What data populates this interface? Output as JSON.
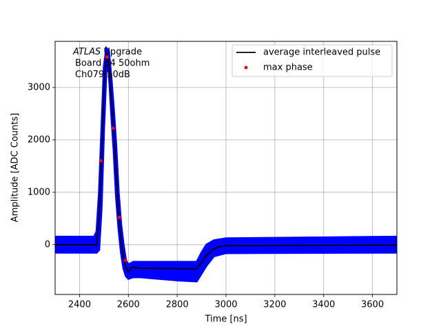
{
  "chart_data": {
    "type": "line",
    "xlabel": "Time [ns]",
    "ylabel": "Amplitude [ADC Counts]",
    "xlim": [
      2300,
      3700
    ],
    "ylim": [
      -950,
      3880
    ],
    "xticks": [
      2400,
      2600,
      2800,
      3000,
      3200,
      3400,
      3600
    ],
    "yticks": [
      0,
      1000,
      2000,
      3000
    ],
    "grid": true,
    "legend": "upper right",
    "annotation_italic": "ATLAS",
    "annotation": [
      "Upgrade",
      "Board 34 50ohm",
      "Ch079 50dB"
    ],
    "band": {
      "color": "#0000ff",
      "x": [
        2300,
        2460,
        2470,
        2480,
        2490,
        2500,
        2510,
        2520,
        2530,
        2540,
        2550,
        2560,
        2570,
        2580,
        2590,
        2600,
        2620,
        2650,
        2700,
        2800,
        2880,
        2900,
        2920,
        2950,
        3000,
        3700
      ],
      "upper": [
        150,
        150,
        250,
        1000,
        2200,
        3400,
        3750,
        3700,
        3200,
        2600,
        1900,
        1000,
        400,
        0,
        -300,
        -380,
        -330,
        -330,
        -330,
        -330,
        -330,
        -150,
        0,
        80,
        120,
        150
      ],
      "lower": [
        -150,
        -150,
        -150,
        -100,
        700,
        2200,
        3350,
        3300,
        2500,
        1800,
        900,
        300,
        -150,
        -450,
        -600,
        -650,
        -620,
        -620,
        -640,
        -680,
        -700,
        -550,
        -400,
        -220,
        -160,
        -150
      ]
    },
    "series": [
      {
        "name": "average interleaved pulse",
        "color": "#000000",
        "kind": "line",
        "x": [
          2300,
          2470,
          2480,
          2490,
          2500,
          2510,
          2520,
          2530,
          2540,
          2550,
          2560,
          2570,
          2580,
          2590,
          2600,
          2610,
          2620,
          2650,
          2880,
          2900,
          2920,
          2950,
          2980,
          3000,
          3700
        ],
        "values": [
          0,
          0,
          500,
          1600,
          3000,
          3650,
          3500,
          2800,
          2200,
          1400,
          600,
          100,
          -250,
          -450,
          -530,
          -440,
          -430,
          -450,
          -460,
          -350,
          -200,
          -80,
          -30,
          -20,
          -10
        ]
      },
      {
        "name": "max phase",
        "color": "#ff0000",
        "kind": "scatter",
        "x": [
          2487,
          2512,
          2538,
          2563,
          2588
        ],
        "values": [
          1600,
          3580,
          2220,
          520,
          -300
        ]
      }
    ]
  }
}
